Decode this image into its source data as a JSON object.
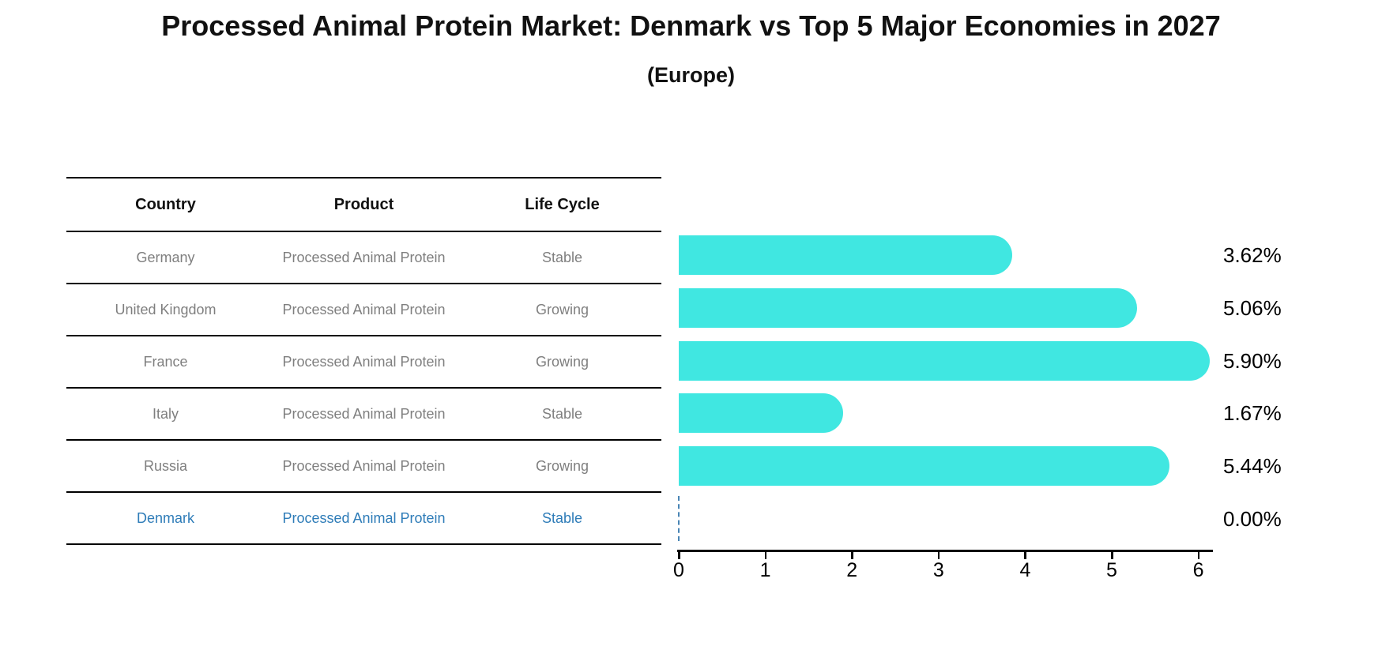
{
  "chart_data": {
    "type": "bar",
    "orientation": "horizontal",
    "title": "Processed Animal Protein Market: Denmark vs Top 5 Major Economies in 2027",
    "subtitle": "(Europe)",
    "categories": [
      "Germany",
      "United Kingdom",
      "France",
      "Italy",
      "Russia",
      "Denmark"
    ],
    "values": [
      3.62,
      5.06,
      5.9,
      1.67,
      5.44,
      0.0
    ],
    "value_labels": [
      "3.62%",
      "5.06%",
      "5.90%",
      "1.67%",
      "5.44%",
      "0.00%"
    ],
    "xlabel": "",
    "ylabel": "",
    "xlim": [
      0,
      6.17
    ],
    "x_ticks": [
      0,
      1,
      2,
      3,
      4,
      5,
      6
    ],
    "grid": false,
    "legend": false,
    "highlighted_category": "Denmark",
    "zero_value_marker": "dashed-line"
  },
  "table": {
    "headers": [
      "Country",
      "Product",
      "Life Cycle"
    ],
    "rows": [
      {
        "country": "Germany",
        "product": "Processed Animal Protein",
        "life_cycle": "Stable",
        "highlighted": false
      },
      {
        "country": "United Kingdom",
        "product": "Processed Animal Protein",
        "life_cycle": "Growing",
        "highlighted": false
      },
      {
        "country": "France",
        "product": "Processed Animal Protein",
        "life_cycle": "Growing",
        "highlighted": false
      },
      {
        "country": "Italy",
        "product": "Processed Animal Protein",
        "life_cycle": "Stable",
        "highlighted": false
      },
      {
        "country": "Russia",
        "product": "Processed Animal Protein",
        "life_cycle": "Growing",
        "highlighted": false
      },
      {
        "country": "Denmark",
        "product": "Processed Animal Protein",
        "life_cycle": "Stable",
        "highlighted": true
      }
    ]
  },
  "colors": {
    "bar": "#40E7E1",
    "highlight_text": "#2E7CB8",
    "dashed_line": "#4985B5",
    "cell_text": "#7f7f7f",
    "axis": "#000000",
    "background": "#ffffff"
  }
}
